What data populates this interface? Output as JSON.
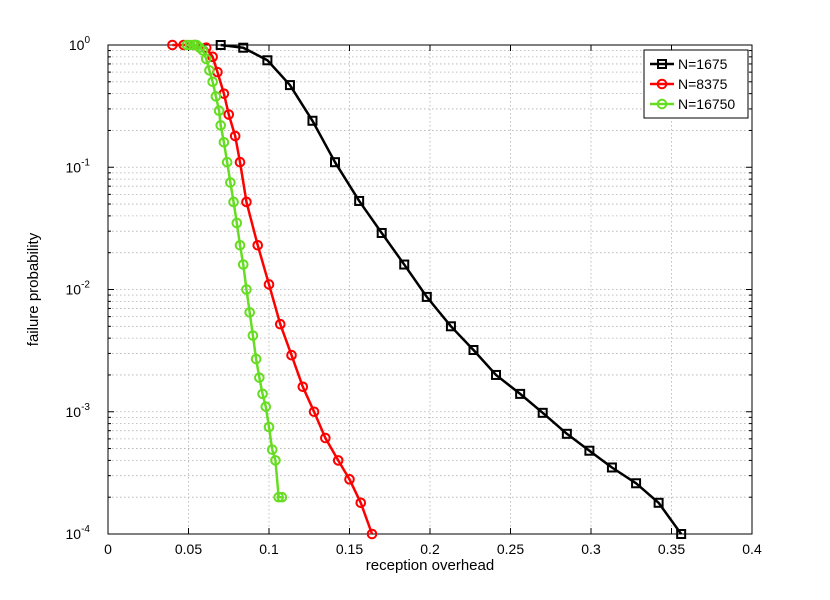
{
  "chart_data": {
    "type": "line",
    "title": "",
    "xlabel": "reception overhead",
    "ylabel": "failure probability",
    "xlim": [
      0,
      0.4
    ],
    "ylim": [
      0.0001,
      1
    ],
    "yscale": "log",
    "grid": true,
    "legend": "top-right",
    "x_ticks": [
      {
        "value": 0,
        "label": "0"
      },
      {
        "value": 0.05,
        "label": "0.05"
      },
      {
        "value": 0.1,
        "label": "0.1"
      },
      {
        "value": 0.15,
        "label": "0.15"
      },
      {
        "value": 0.2,
        "label": "0.2"
      },
      {
        "value": 0.25,
        "label": "0.25"
      },
      {
        "value": 0.3,
        "label": "0.3"
      },
      {
        "value": 0.35,
        "label": "0.35"
      },
      {
        "value": 0.4,
        "label": "0.4"
      }
    ],
    "y_ticks": [
      {
        "value": 1,
        "base": "10",
        "exp": "0"
      },
      {
        "value": 0.1,
        "base": "10",
        "exp": "-1"
      },
      {
        "value": 0.01,
        "base": "10",
        "exp": "-2"
      },
      {
        "value": 0.001,
        "base": "10",
        "exp": "-3"
      },
      {
        "value": 0.0001,
        "base": "10",
        "exp": "-4"
      }
    ],
    "series": [
      {
        "name": "N=1675",
        "color": "#000000",
        "marker": "square",
        "x": [
          0.07,
          0.084,
          0.099,
          0.113,
          0.127,
          0.141,
          0.156,
          0.17,
          0.184,
          0.198,
          0.213,
          0.227,
          0.241,
          0.256,
          0.27,
          0.285,
          0.299,
          0.313,
          0.328,
          0.342,
          0.356
        ],
        "y": [
          1.0,
          0.95,
          0.75,
          0.47,
          0.24,
          0.11,
          0.053,
          0.029,
          0.016,
          0.0087,
          0.005,
          0.0032,
          0.002,
          0.0014,
          0.00098,
          0.00066,
          0.00048,
          0.00035,
          0.00026,
          0.00018,
          0.0001
        ]
      },
      {
        "name": "N=8375",
        "color": "#ff0000",
        "marker": "circle",
        "x": [
          0.04,
          0.047,
          0.054,
          0.061,
          0.065,
          0.068,
          0.072,
          0.075,
          0.079,
          0.082,
          0.086,
          0.093,
          0.1,
          0.107,
          0.114,
          0.121,
          0.128,
          0.135,
          0.143,
          0.15,
          0.157,
          0.164
        ],
        "y": [
          1.0,
          1.0,
          1.0,
          0.95,
          0.8,
          0.6,
          0.4,
          0.27,
          0.18,
          0.11,
          0.052,
          0.023,
          0.011,
          0.0052,
          0.0029,
          0.0016,
          0.001,
          0.00061,
          0.0004,
          0.00028,
          0.00018,
          0.0001
        ]
      },
      {
        "name": "N=16750",
        "color": "#66dd22",
        "marker": "circle",
        "x": [
          0.049,
          0.051,
          0.053,
          0.055,
          0.057,
          0.059,
          0.061,
          0.063,
          0.065,
          0.067,
          0.069,
          0.07,
          0.072,
          0.074,
          0.076,
          0.078,
          0.08,
          0.082,
          0.084,
          0.086,
          0.088,
          0.09,
          0.092,
          0.094,
          0.096,
          0.098,
          0.1,
          0.102,
          0.104,
          0.106,
          0.108
        ],
        "y": [
          1.0,
          1.0,
          1.0,
          1.0,
          0.95,
          0.9,
          0.77,
          0.62,
          0.5,
          0.38,
          0.29,
          0.22,
          0.16,
          0.11,
          0.075,
          0.052,
          0.035,
          0.023,
          0.016,
          0.01,
          0.0065,
          0.0042,
          0.0027,
          0.0019,
          0.0014,
          0.0011,
          0.00075,
          0.00049,
          0.0004,
          0.0002,
          0.0002
        ]
      }
    ]
  }
}
